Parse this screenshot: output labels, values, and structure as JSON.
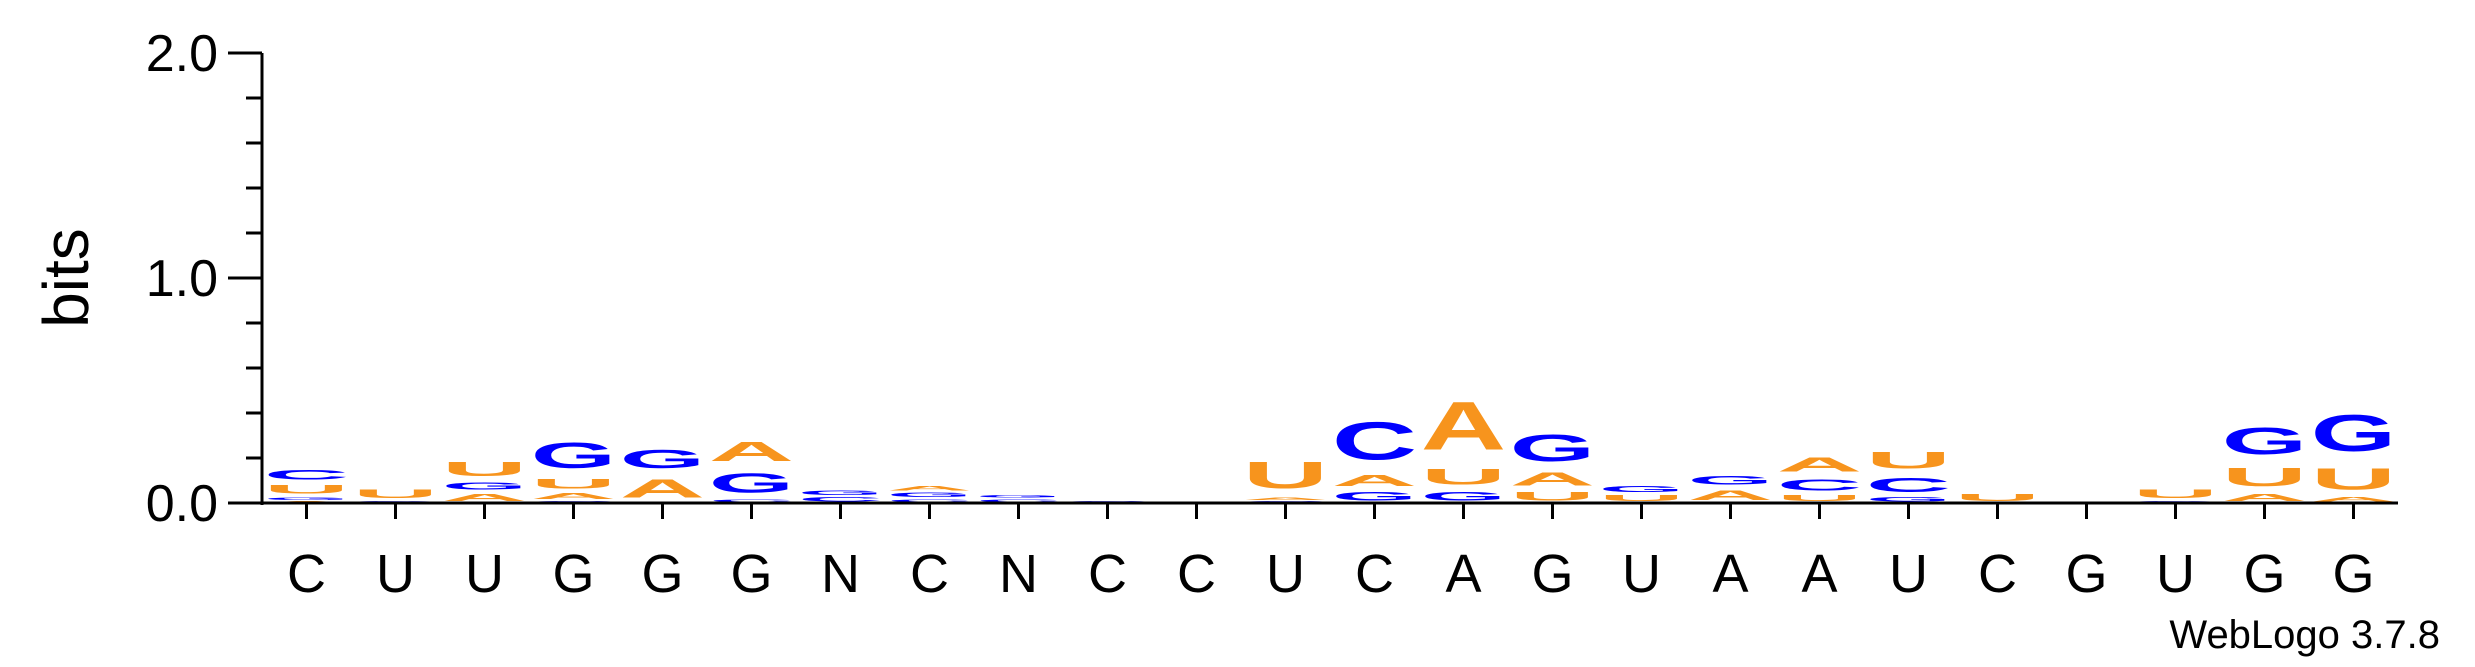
{
  "chart_data": {
    "type": "sequence-logo",
    "ylabel": "bits",
    "ylim": [
      0,
      2.0
    ],
    "yticks": [
      {
        "value": 0.0,
        "label": "0.0"
      },
      {
        "value": 1.0,
        "label": "1.0"
      },
      {
        "value": 2.0,
        "label": "2.0"
      }
    ],
    "colors": {
      "A": "#f7941d",
      "U": "#f7941d",
      "C": "#0000ff",
      "G": "#0000ff"
    },
    "positions": [
      {
        "label": "C",
        "stack": [
          {
            "letter": "A",
            "height": 0.01
          },
          {
            "letter": "G",
            "height": 0.02
          },
          {
            "letter": "U",
            "height": 0.06
          },
          {
            "letter": "C",
            "height": 0.07
          }
        ]
      },
      {
        "label": "U",
        "stack": [
          {
            "letter": "G",
            "height": 0.01
          },
          {
            "letter": "U",
            "height": 0.06
          }
        ]
      },
      {
        "label": "U",
        "stack": [
          {
            "letter": "A",
            "height": 0.05
          },
          {
            "letter": "G",
            "height": 0.05
          },
          {
            "letter": "U",
            "height": 0.1
          }
        ]
      },
      {
        "label": "G",
        "stack": [
          {
            "letter": "C",
            "height": 0.01
          },
          {
            "letter": "A",
            "height": 0.04
          },
          {
            "letter": "U",
            "height": 0.07
          },
          {
            "letter": "G",
            "height": 0.18
          }
        ]
      },
      {
        "label": "G",
        "stack": [
          {
            "letter": "A",
            "height": 0.13
          },
          {
            "letter": "G",
            "height": 0.13
          }
        ]
      },
      {
        "label": "G",
        "stack": [
          {
            "letter": "C",
            "height": 0.02
          },
          {
            "letter": "G",
            "height": 0.14
          },
          {
            "letter": "A",
            "height": 0.14
          }
        ]
      },
      {
        "label": "N",
        "stack": [
          {
            "letter": "C",
            "height": 0.03
          },
          {
            "letter": "G",
            "height": 0.03
          }
        ]
      },
      {
        "label": "C",
        "stack": [
          {
            "letter": "C",
            "height": 0.02
          },
          {
            "letter": "G",
            "height": 0.03
          },
          {
            "letter": "A",
            "height": 0.03
          }
        ]
      },
      {
        "label": "N",
        "stack": [
          {
            "letter": "C",
            "height": 0.02
          },
          {
            "letter": "G",
            "height": 0.02
          }
        ]
      },
      {
        "label": "C",
        "stack": [
          {
            "letter": "C",
            "height": 0.01
          }
        ]
      },
      {
        "label": "C",
        "stack": []
      },
      {
        "label": "U",
        "stack": [
          {
            "letter": "C",
            "height": 0.01
          },
          {
            "letter": "A",
            "height": 0.02
          },
          {
            "letter": "U",
            "height": 0.19
          }
        ]
      },
      {
        "label": "C",
        "stack": [
          {
            "letter": "G",
            "height": 0.06
          },
          {
            "letter": "A",
            "height": 0.08
          },
          {
            "letter": "C",
            "height": 0.27
          }
        ]
      },
      {
        "label": "A",
        "stack": [
          {
            "letter": "G",
            "height": 0.06
          },
          {
            "letter": "U",
            "height": 0.11
          },
          {
            "letter": "A",
            "height": 0.34
          }
        ]
      },
      {
        "label": "G",
        "stack": [
          {
            "letter": "U",
            "height": 0.06
          },
          {
            "letter": "A",
            "height": 0.09
          },
          {
            "letter": "G",
            "height": 0.19
          }
        ]
      },
      {
        "label": "U",
        "stack": [
          {
            "letter": "U",
            "height": 0.04
          },
          {
            "letter": "G",
            "height": 0.04
          }
        ]
      },
      {
        "label": "A",
        "stack": [
          {
            "letter": "A",
            "height": 0.07
          },
          {
            "letter": "G",
            "height": 0.06
          }
        ]
      },
      {
        "label": "A",
        "stack": [
          {
            "letter": "U",
            "height": 0.04
          },
          {
            "letter": "C",
            "height": 0.08
          },
          {
            "letter": "A",
            "height": 0.1
          }
        ]
      },
      {
        "label": "U",
        "stack": [
          {
            "letter": "G",
            "height": 0.03
          },
          {
            "letter": "C",
            "height": 0.1
          },
          {
            "letter": "U",
            "height": 0.12
          }
        ]
      },
      {
        "label": "C",
        "stack": [
          {
            "letter": "U",
            "height": 0.05
          }
        ]
      },
      {
        "label": "G",
        "stack": []
      },
      {
        "label": "U",
        "stack": [
          {
            "letter": "G",
            "height": 0.01
          },
          {
            "letter": "U",
            "height": 0.06
          }
        ]
      },
      {
        "label": "G",
        "stack": [
          {
            "letter": "A",
            "height": 0.05
          },
          {
            "letter": "U",
            "height": 0.13
          },
          {
            "letter": "G",
            "height": 0.19
          }
        ]
      },
      {
        "label": "G",
        "stack": [
          {
            "letter": "A",
            "height": 0.03
          },
          {
            "letter": "U",
            "height": 0.15
          },
          {
            "letter": "G",
            "height": 0.26
          }
        ]
      }
    ]
  },
  "footer": {
    "brand": "WebLogo 3.7.8"
  }
}
